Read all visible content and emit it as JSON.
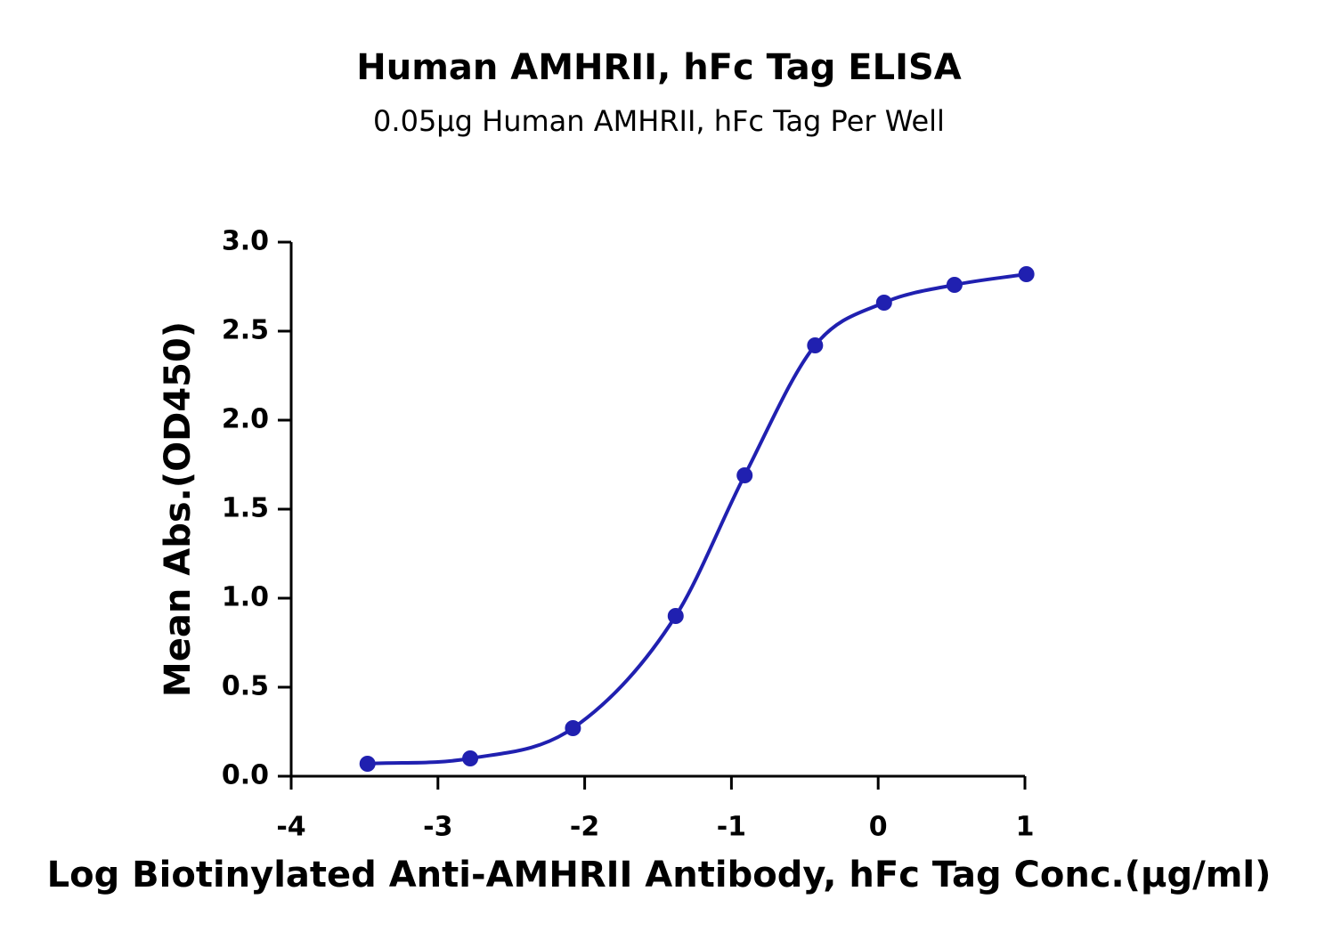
{
  "chart_data": {
    "type": "scatter",
    "title": "Human AMHRII, hFc Tag ELISA",
    "subtitle": "0.05μg Human AMHRII, hFc Tag Per Well",
    "x_label": "Log Biotinylated Anti-AMHRII Antibody, hFc Tag Conc.(μg/ml)",
    "y_label": "Mean Abs.(OD450)",
    "color": "#2020b0",
    "x": [
      -3.48,
      -2.78,
      -2.08,
      -1.38,
      -0.91,
      -0.43,
      0.04,
      0.52,
      1.01
    ],
    "values": [
      0.07,
      0.1,
      0.27,
      0.9,
      1.69,
      2.42,
      2.66,
      2.76,
      2.82
    ],
    "xlim": [
      -4,
      1
    ],
    "xticks": [
      -4,
      -3,
      -2,
      -1,
      0,
      1
    ],
    "ylim": [
      0,
      3
    ],
    "yticks": [
      {
        "value": 0,
        "label": "0.0"
      },
      {
        "value": 0.5,
        "label": "0.5"
      },
      {
        "value": 1,
        "label": "1.0"
      },
      {
        "value": 1.5,
        "label": "1.5"
      },
      {
        "value": 2,
        "label": "2.0"
      },
      {
        "value": 2.5,
        "label": "2.5"
      },
      {
        "value": 3,
        "label": "3.0"
      }
    ],
    "grid": false
  }
}
